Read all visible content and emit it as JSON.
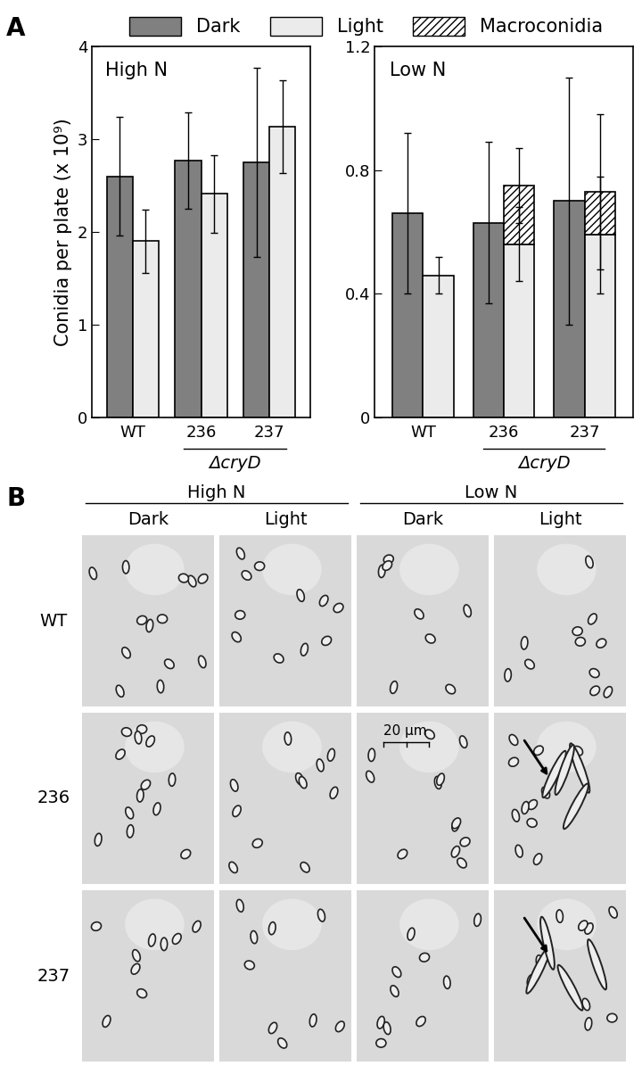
{
  "panel_labels": [
    "A",
    "B"
  ],
  "chart_data": [
    {
      "type": "bar",
      "annotation": "High N",
      "y_label": "Conidia per plate (x 10⁹)",
      "categories": [
        "WT",
        "236",
        "237"
      ],
      "category_group": {
        "label": "ΔcryD",
        "categories": [
          "236",
          "237"
        ]
      },
      "series": [
        {
          "name": "Dark",
          "color": "#808080",
          "values": [
            2.6,
            2.77,
            2.75
          ],
          "errors": [
            0.64,
            0.52,
            1.02
          ]
        },
        {
          "name": "Light",
          "color": "#ebebeb",
          "values": [
            1.9,
            2.41,
            3.13
          ],
          "errors": [
            0.34,
            0.42,
            0.5
          ]
        }
      ],
      "ylim": [
        0,
        4
      ],
      "yticks": [
        0,
        1,
        2,
        3,
        4
      ]
    },
    {
      "type": "bar",
      "annotation": "Low N",
      "categories": [
        "WT",
        "236",
        "237"
      ],
      "category_group": {
        "label": "ΔcryD",
        "categories": [
          "236",
          "237"
        ]
      },
      "series": [
        {
          "name": "Dark",
          "color": "#808080",
          "values": [
            0.66,
            0.63,
            0.7
          ],
          "errors": [
            0.26,
            0.26,
            0.4
          ]
        },
        {
          "name": "Light",
          "color": "#ebebeb",
          "values": [
            0.46,
            0.56,
            0.59
          ],
          "errors": [
            0.06,
            0.12,
            0.19
          ]
        },
        {
          "name": "Macroconidia",
          "color": "#ffffff",
          "stacked": true,
          "values": [
            null,
            0.19,
            0.14
          ],
          "errors": [
            null,
            0.12,
            0.25
          ]
        }
      ],
      "legend": "upper center",
      "ylim": [
        0,
        1.2
      ],
      "yticks": [
        0,
        0.4,
        0.8,
        1.2
      ]
    }
  ],
  "panel_b": {
    "column_groups": [
      "High N",
      "Low N"
    ],
    "columns": [
      "Dark",
      "Light",
      "Dark",
      "Light"
    ],
    "rows": [
      "WT",
      "236",
      "237"
    ],
    "scale_bar": "20 µm"
  }
}
